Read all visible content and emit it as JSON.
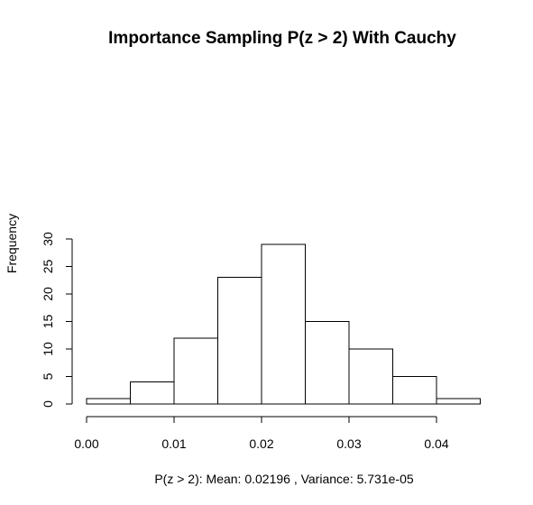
{
  "chart_data": {
    "type": "bar",
    "title": "Importance Sampling P(z > 2) With Cauchy",
    "xlabel": "P(z > 2): Mean:  0.02196 , Variance:  5.731e-05",
    "ylabel": "Frequency",
    "bins": [
      {
        "x0": 0.0,
        "x1": 0.005,
        "count": 1
      },
      {
        "x0": 0.005,
        "x1": 0.01,
        "count": 4
      },
      {
        "x0": 0.01,
        "x1": 0.015,
        "count": 12
      },
      {
        "x0": 0.015,
        "x1": 0.02,
        "count": 23
      },
      {
        "x0": 0.02,
        "x1": 0.025,
        "count": 29
      },
      {
        "x0": 0.025,
        "x1": 0.03,
        "count": 15
      },
      {
        "x0": 0.03,
        "x1": 0.035,
        "count": 10
      },
      {
        "x0": 0.035,
        "x1": 0.04,
        "count": 5
      },
      {
        "x0": 0.04,
        "x1": 0.045,
        "count": 1
      }
    ],
    "xticks": [
      {
        "value": 0.0,
        "label": "0.00"
      },
      {
        "value": 0.01,
        "label": "0.01"
      },
      {
        "value": 0.02,
        "label": "0.02"
      },
      {
        "value": 0.03,
        "label": "0.03"
      },
      {
        "value": 0.04,
        "label": "0.04"
      }
    ],
    "yticks": [
      {
        "value": 0,
        "label": "0"
      },
      {
        "value": 5,
        "label": "5"
      },
      {
        "value": 10,
        "label": "10"
      },
      {
        "value": 15,
        "label": "15"
      },
      {
        "value": 20,
        "label": "20"
      },
      {
        "value": 25,
        "label": "25"
      },
      {
        "value": 30,
        "label": "30"
      }
    ],
    "xlim": [
      0,
      0.04
    ],
    "ylim": [
      0,
      30
    ],
    "grid": false,
    "bar_fill": "#ffffff",
    "bar_stroke": "#000000"
  }
}
